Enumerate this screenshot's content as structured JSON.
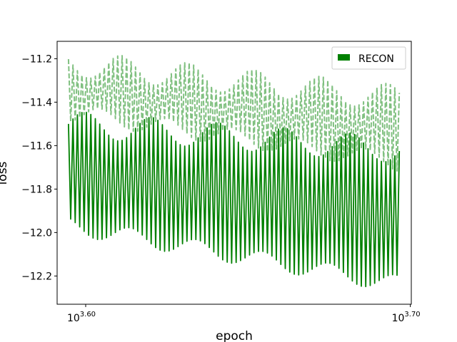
{
  "chart_data": {
    "type": "line",
    "xlabel": "epoch",
    "ylabel": "loss",
    "xscale": "log",
    "xlim_log10": [
      3.5912,
      3.7003
    ],
    "ylim": [
      -12.33,
      -11.12
    ],
    "x_range_log10": [
      3.5947,
      3.6966
    ],
    "xticks": [
      {
        "base": "10",
        "exp": "3.60",
        "log10": 3.6
      },
      {
        "base": "10",
        "exp": "3.70",
        "log10": 3.7
      }
    ],
    "yticks": [
      {
        "label": "−11.2",
        "value": -11.2
      },
      {
        "label": "−11.4",
        "value": -11.4
      },
      {
        "label": "−11.6",
        "value": -11.6
      },
      {
        "label": "−11.8",
        "value": -11.8
      },
      {
        "label": "−12.0",
        "value": -12.0
      },
      {
        "label": "−12.2",
        "value": -12.2
      }
    ],
    "legend": {
      "position": "upper-right",
      "entries": [
        "RECON"
      ]
    },
    "grid": false,
    "series": [
      {
        "name": "RECON",
        "style": "solid",
        "color": "#008000",
        "oscillation": {
          "cycles": 74,
          "peak_start": -11.5,
          "peak_end": -11.62,
          "trough_start": -11.97,
          "trough_end": -12.24
        }
      },
      {
        "style": "dashed",
        "color": "#80c080",
        "oscillation": {
          "cycles": 74,
          "peak_start": -11.22,
          "peak_end": -11.38,
          "trough_start": -11.45,
          "trough_end": -11.68
        }
      }
    ]
  }
}
